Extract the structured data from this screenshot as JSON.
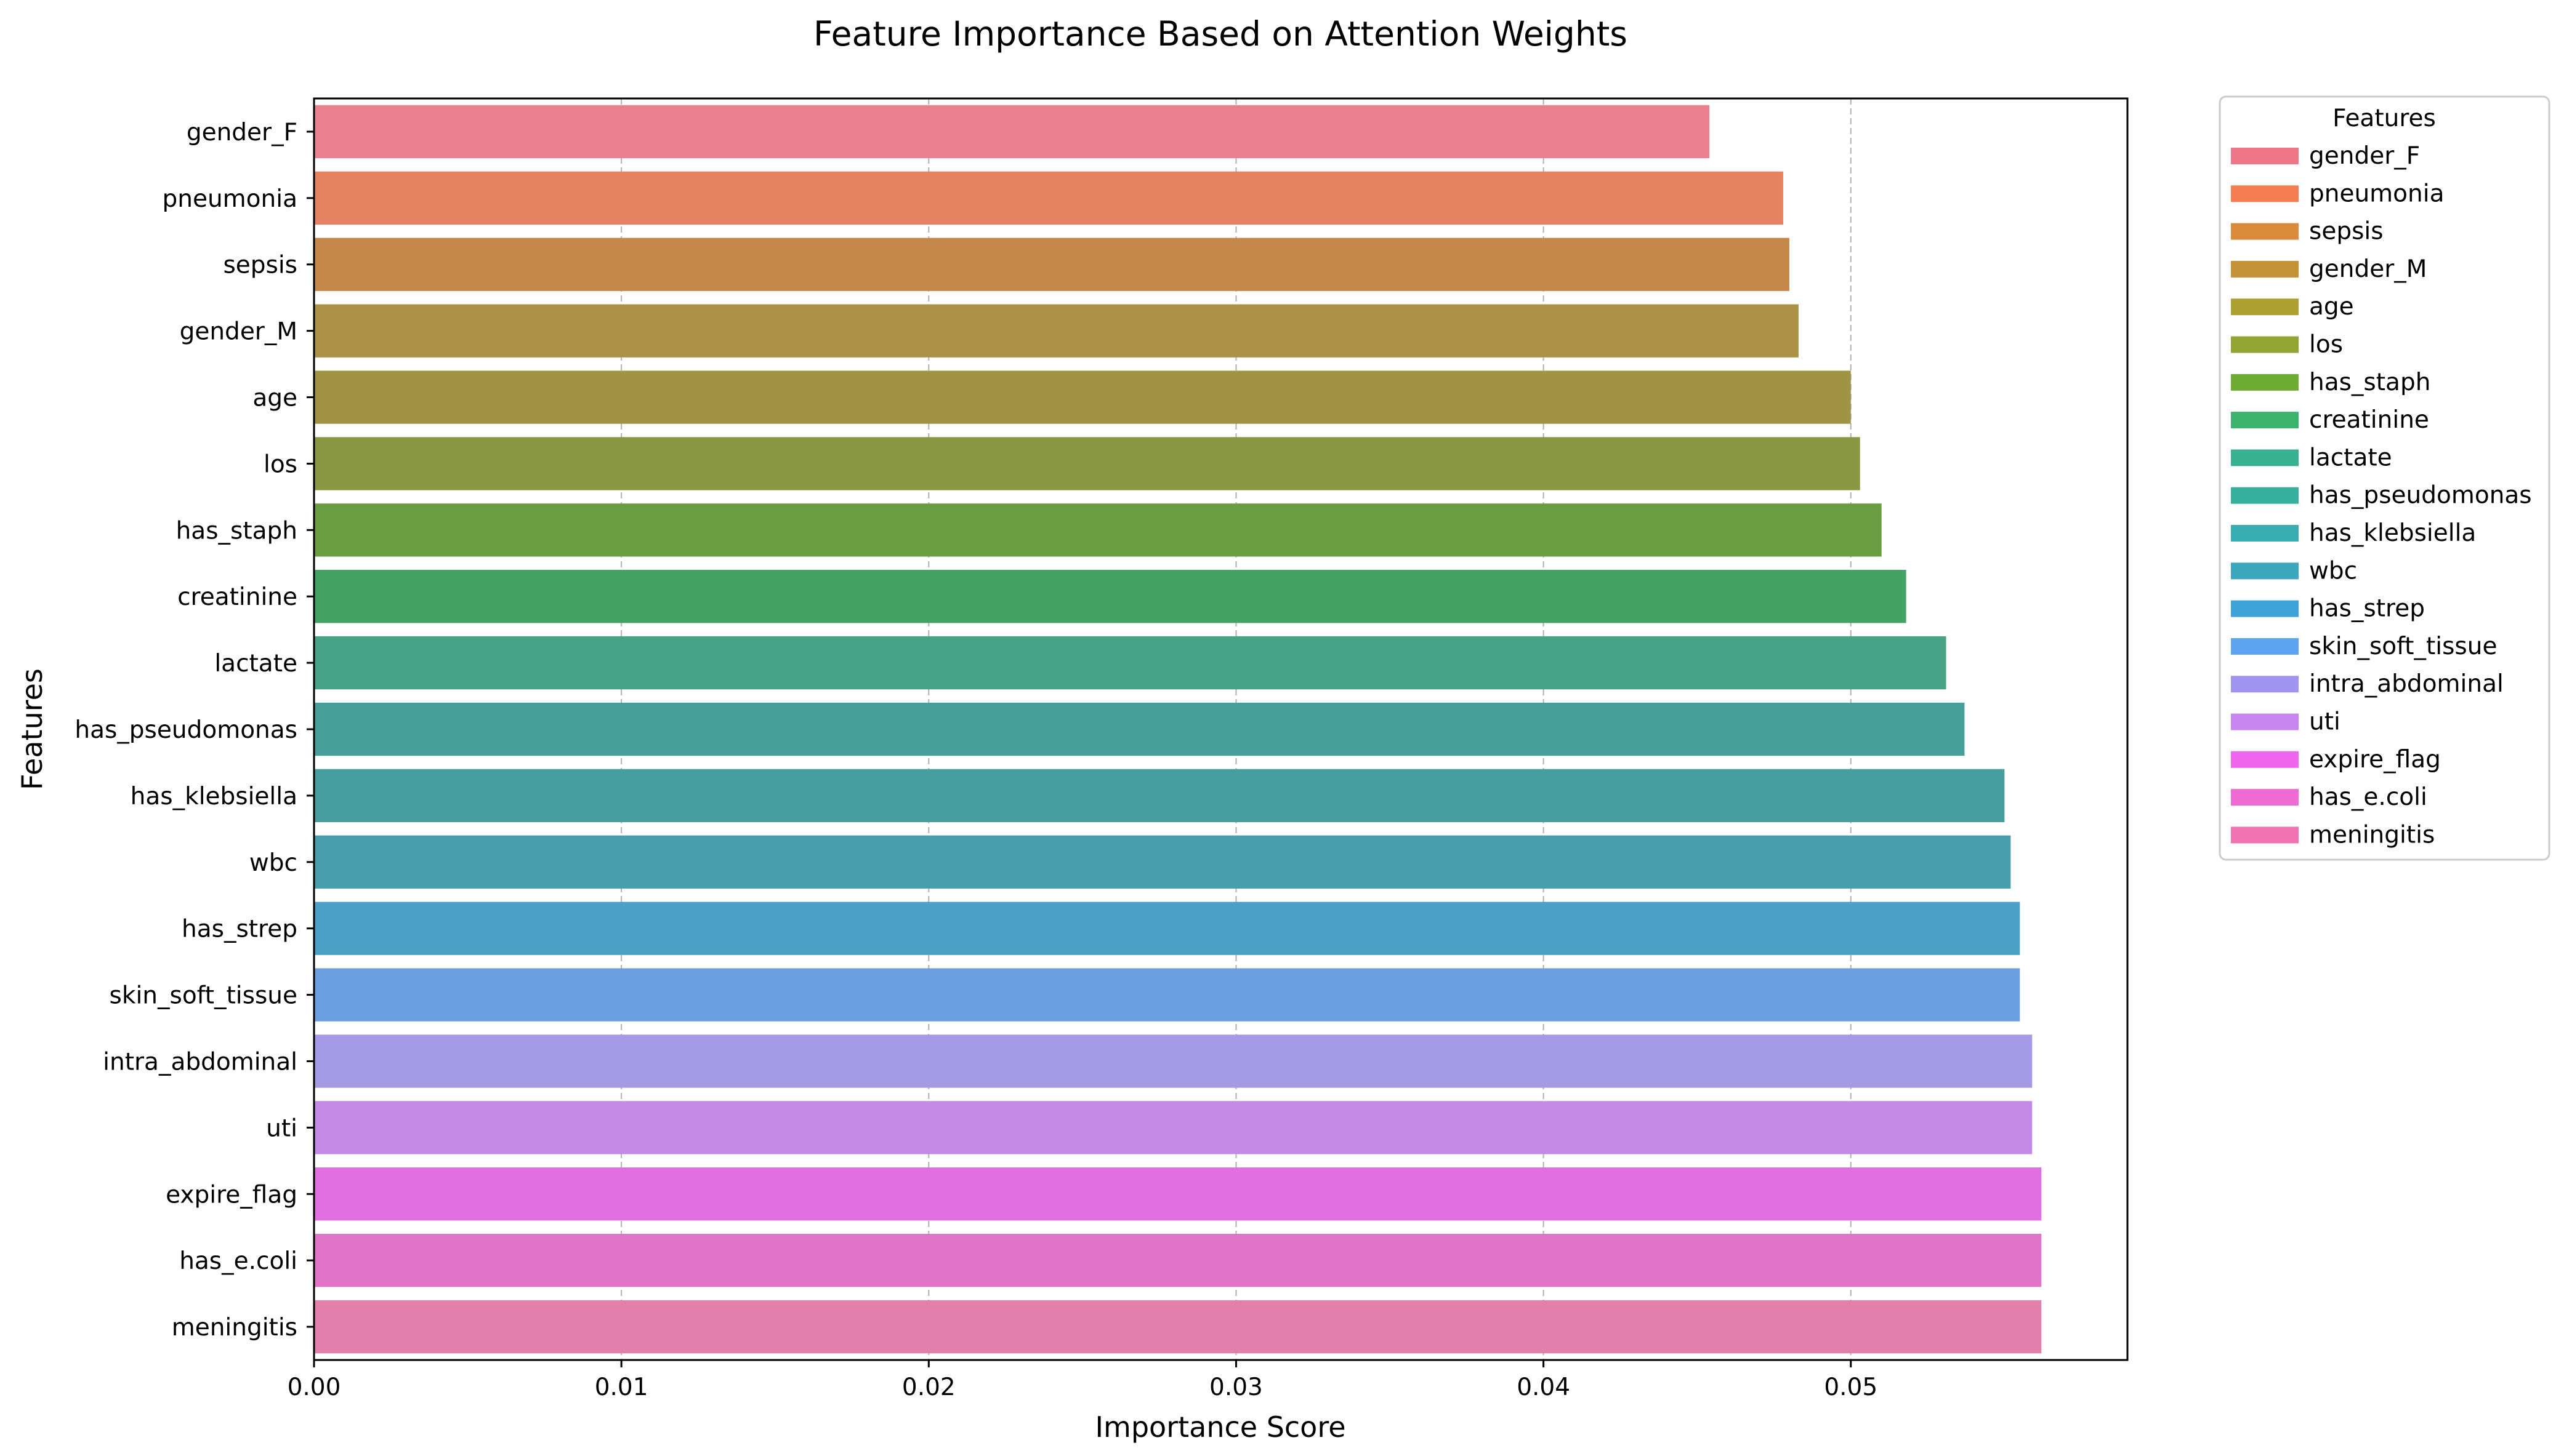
{
  "chart_data": {
    "type": "bar",
    "orientation": "horizontal",
    "title": "Feature Importance Based on Attention Weights",
    "xlabel": "Importance Score",
    "ylabel": "Features",
    "xlim": [
      0,
      0.059
    ],
    "xticks": [
      0.0,
      0.01,
      0.02,
      0.03,
      0.04,
      0.05
    ],
    "xtick_labels": [
      "0.00",
      "0.01",
      "0.02",
      "0.03",
      "0.04",
      "0.05"
    ],
    "grid": "x-axis dashed",
    "categories": [
      "gender_F",
      "pneumonia",
      "sepsis",
      "gender_M",
      "age",
      "los",
      "has_staph",
      "creatinine",
      "lactate",
      "has_pseudomonas",
      "has_klebsiella",
      "wbc",
      "has_strep",
      "skin_soft_tissue",
      "intra_abdominal",
      "uti",
      "expire_flag",
      "has_e.coli",
      "meningitis"
    ],
    "values": [
      0.0454,
      0.0478,
      0.048,
      0.0483,
      0.05,
      0.0503,
      0.051,
      0.0518,
      0.0531,
      0.0537,
      0.055,
      0.0552,
      0.0555,
      0.0555,
      0.0559,
      0.0559,
      0.0562,
      0.0562,
      0.0562
    ],
    "bar_colors": [
      "#e8808f",
      "#e48262",
      "#c4894a",
      "#ab9145",
      "#a19344",
      "#8a9843",
      "#6a9d41",
      "#44a264",
      "#48a286",
      "#46a099",
      "#469e9f",
      "#489ead",
      "#4ba0c5",
      "#6aa0e0",
      "#a59ae6",
      "#c38ae4",
      "#e070e2",
      "#e074c9",
      "#e27faa"
    ],
    "legend": {
      "title": "Features",
      "placement": "outside-right-top",
      "entries": [
        "gender_F",
        "pneumonia",
        "sepsis",
        "gender_M",
        "age",
        "los",
        "has_staph",
        "creatinine",
        "lactate",
        "has_pseudomonas",
        "has_klebsiella",
        "wbc",
        "has_strep",
        "skin_soft_tissue",
        "intra_abdominal",
        "uti",
        "expire_flag",
        "has_e.coli",
        "meningitis"
      ],
      "colors": [
        "#f0778a",
        "#f57d52",
        "#db8b3c",
        "#c49236",
        "#aca033",
        "#94a434",
        "#6fac33",
        "#3cb36c",
        "#3ab190",
        "#38b09e",
        "#39aeb2",
        "#3ba8bd",
        "#3da3d9",
        "#5da3f0",
        "#a095ee",
        "#c785ef",
        "#ef65ee",
        "#ee6bd3",
        "#ef73b0"
      ]
    }
  }
}
